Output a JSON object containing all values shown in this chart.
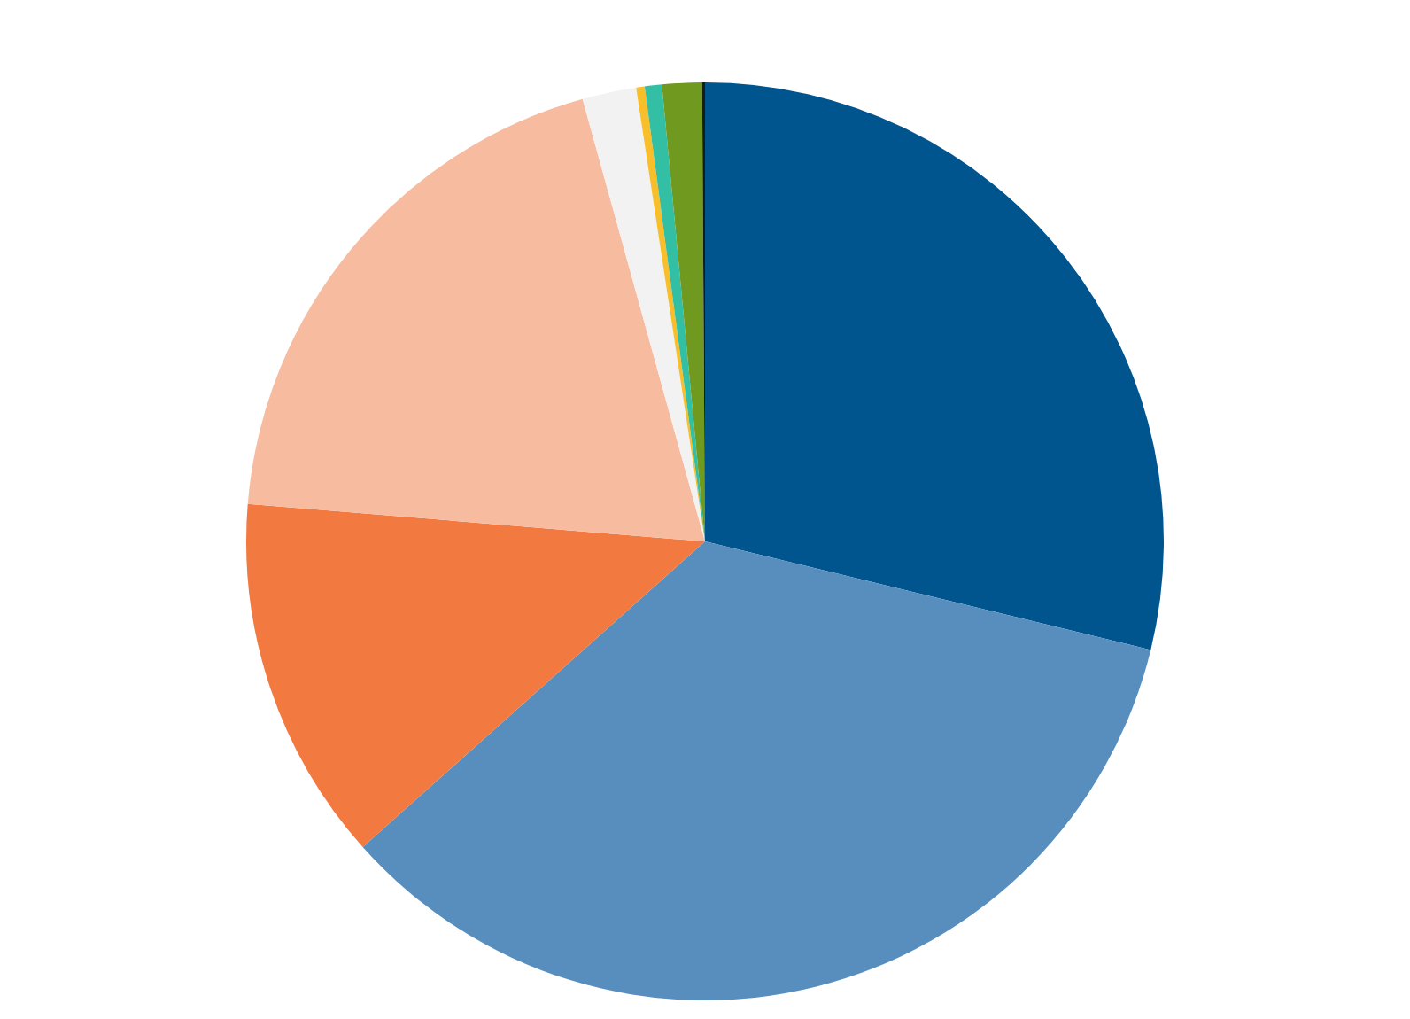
{
  "chart_data": {
    "type": "pie",
    "categories": [
      null,
      null,
      null,
      null,
      null,
      null,
      null,
      null,
      null
    ],
    "values": [
      28.8,
      34.6,
      12.9,
      19.4,
      1.9,
      0.3,
      0.6,
      1.4,
      0.1
    ],
    "colors": [
      "#00558f",
      "#588ebd",
      "#f27940",
      "#f7bb9f",
      "#f2f2f2",
      "#f9bf2a",
      "#33bfa3",
      "#70991f",
      "#1a1a1a"
    ]
  }
}
